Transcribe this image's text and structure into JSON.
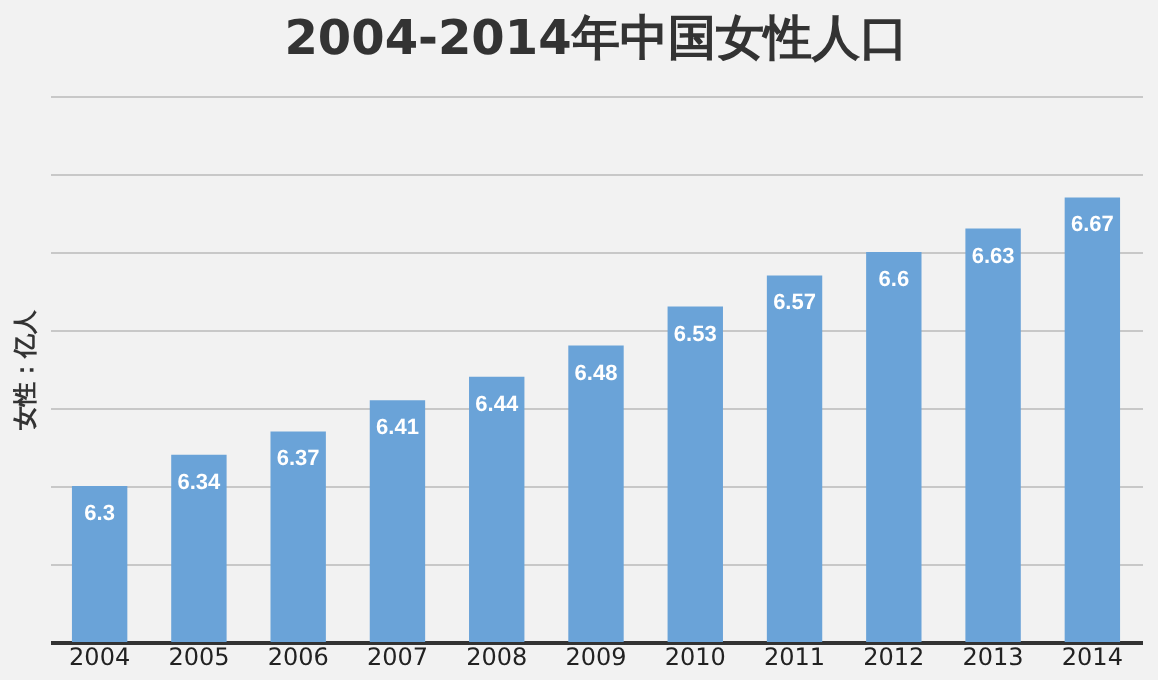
{
  "chart_data": {
    "type": "bar",
    "title": "2004-2014年中国女性人口",
    "ylabel": "女性：亿人",
    "categories": [
      "2004",
      "2005",
      "2006",
      "2007",
      "2008",
      "2009",
      "2010",
      "2011",
      "2012",
      "2013",
      "2014"
    ],
    "values": [
      6.3,
      6.34,
      6.37,
      6.41,
      6.44,
      6.48,
      6.53,
      6.57,
      6.6,
      6.63,
      6.67
    ],
    "color": "#6aa3d8",
    "ylim": [
      6.1,
      6.8
    ],
    "yticks": [
      {
        "value": 6.1,
        "label": null
      },
      {
        "value": 6.2,
        "label": null
      },
      {
        "value": 6.3,
        "label": null
      },
      {
        "value": 6.4,
        "label": null
      },
      {
        "value": 6.5,
        "label": null
      },
      {
        "value": 6.6,
        "label": null
      },
      {
        "value": 6.7,
        "label": null
      },
      {
        "value": 6.8,
        "label": null
      }
    ],
    "grid": "y",
    "tick_labels": "x",
    "data_labels": true
  }
}
